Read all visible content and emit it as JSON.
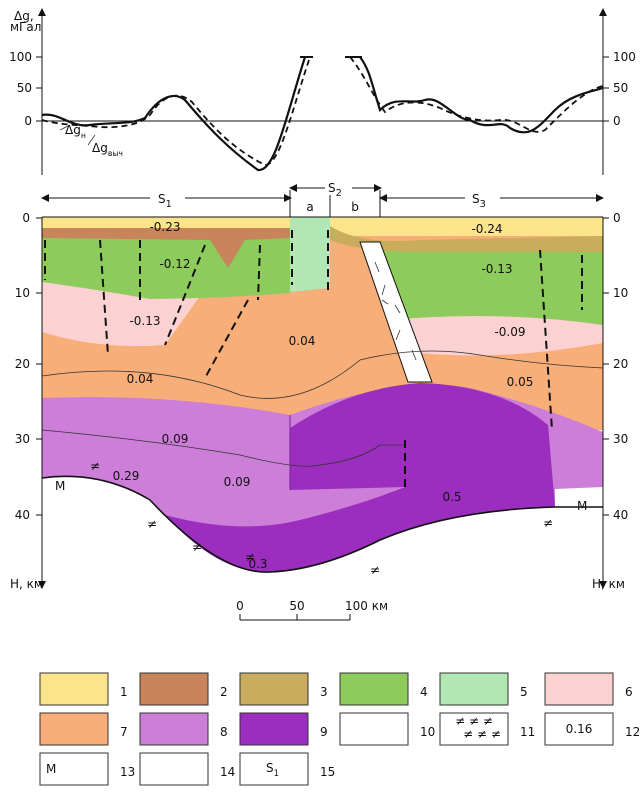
{
  "gravity_axis": {
    "label_1": "Δg,",
    "label_2": "мГал",
    "left_ticks": [
      "100",
      "50",
      "0"
    ],
    "right_ticks": [
      "100",
      "50",
      "0"
    ]
  },
  "curve_labels": [
    {
      "base": "Δg",
      "sub": "н"
    },
    {
      "base": "Δg",
      "sub": "выч"
    }
  ],
  "zones": [
    {
      "base": "S",
      "sub": "1"
    },
    {
      "base": "S",
      "sub": "2"
    },
    {
      "base": "S",
      "sub": "3"
    }
  ],
  "subzones": [
    "a",
    "b"
  ],
  "depth_axis": {
    "left_ticks": [
      "0",
      "10",
      "20",
      "30",
      "40"
    ],
    "right_ticks": [
      "0",
      "10",
      "20",
      "30",
      "40"
    ],
    "left_label": "H, км",
    "right_label": "H, км"
  },
  "densities": [
    "-0.23",
    "-0.12",
    "-0.13",
    "0.04",
    "0.04",
    "0.09",
    "0.29",
    "0.09",
    "0.3",
    "0.5",
    "0.05",
    "-0.09",
    "-0.13",
    "-0.24"
  ],
  "moho_labels": [
    "M",
    "M"
  ],
  "moho_marks": [
    "≠",
    "≠",
    "≠",
    "≠",
    "≠",
    "≠"
  ],
  "scale_bar": [
    "0",
    "50",
    "100 км"
  ],
  "legend": [
    {
      "number": "1"
    },
    {
      "number": "2"
    },
    {
      "number": "3"
    },
    {
      "number": "4"
    },
    {
      "number": "5"
    },
    {
      "number": "6"
    },
    {
      "number": "7"
    },
    {
      "number": "8"
    },
    {
      "number": "9"
    },
    {
      "number": "10"
    },
    {
      "number": "11",
      "symbol": [
        "≠ ≠ ≠",
        "≠ ≠ ≠"
      ]
    },
    {
      "number": "12",
      "symbol": "0.16"
    },
    {
      "number": "13",
      "symbol": "M"
    },
    {
      "number": "14"
    },
    {
      "number": "15",
      "symbol": {
        "base": "S",
        "sub": "1"
      }
    }
  ]
}
